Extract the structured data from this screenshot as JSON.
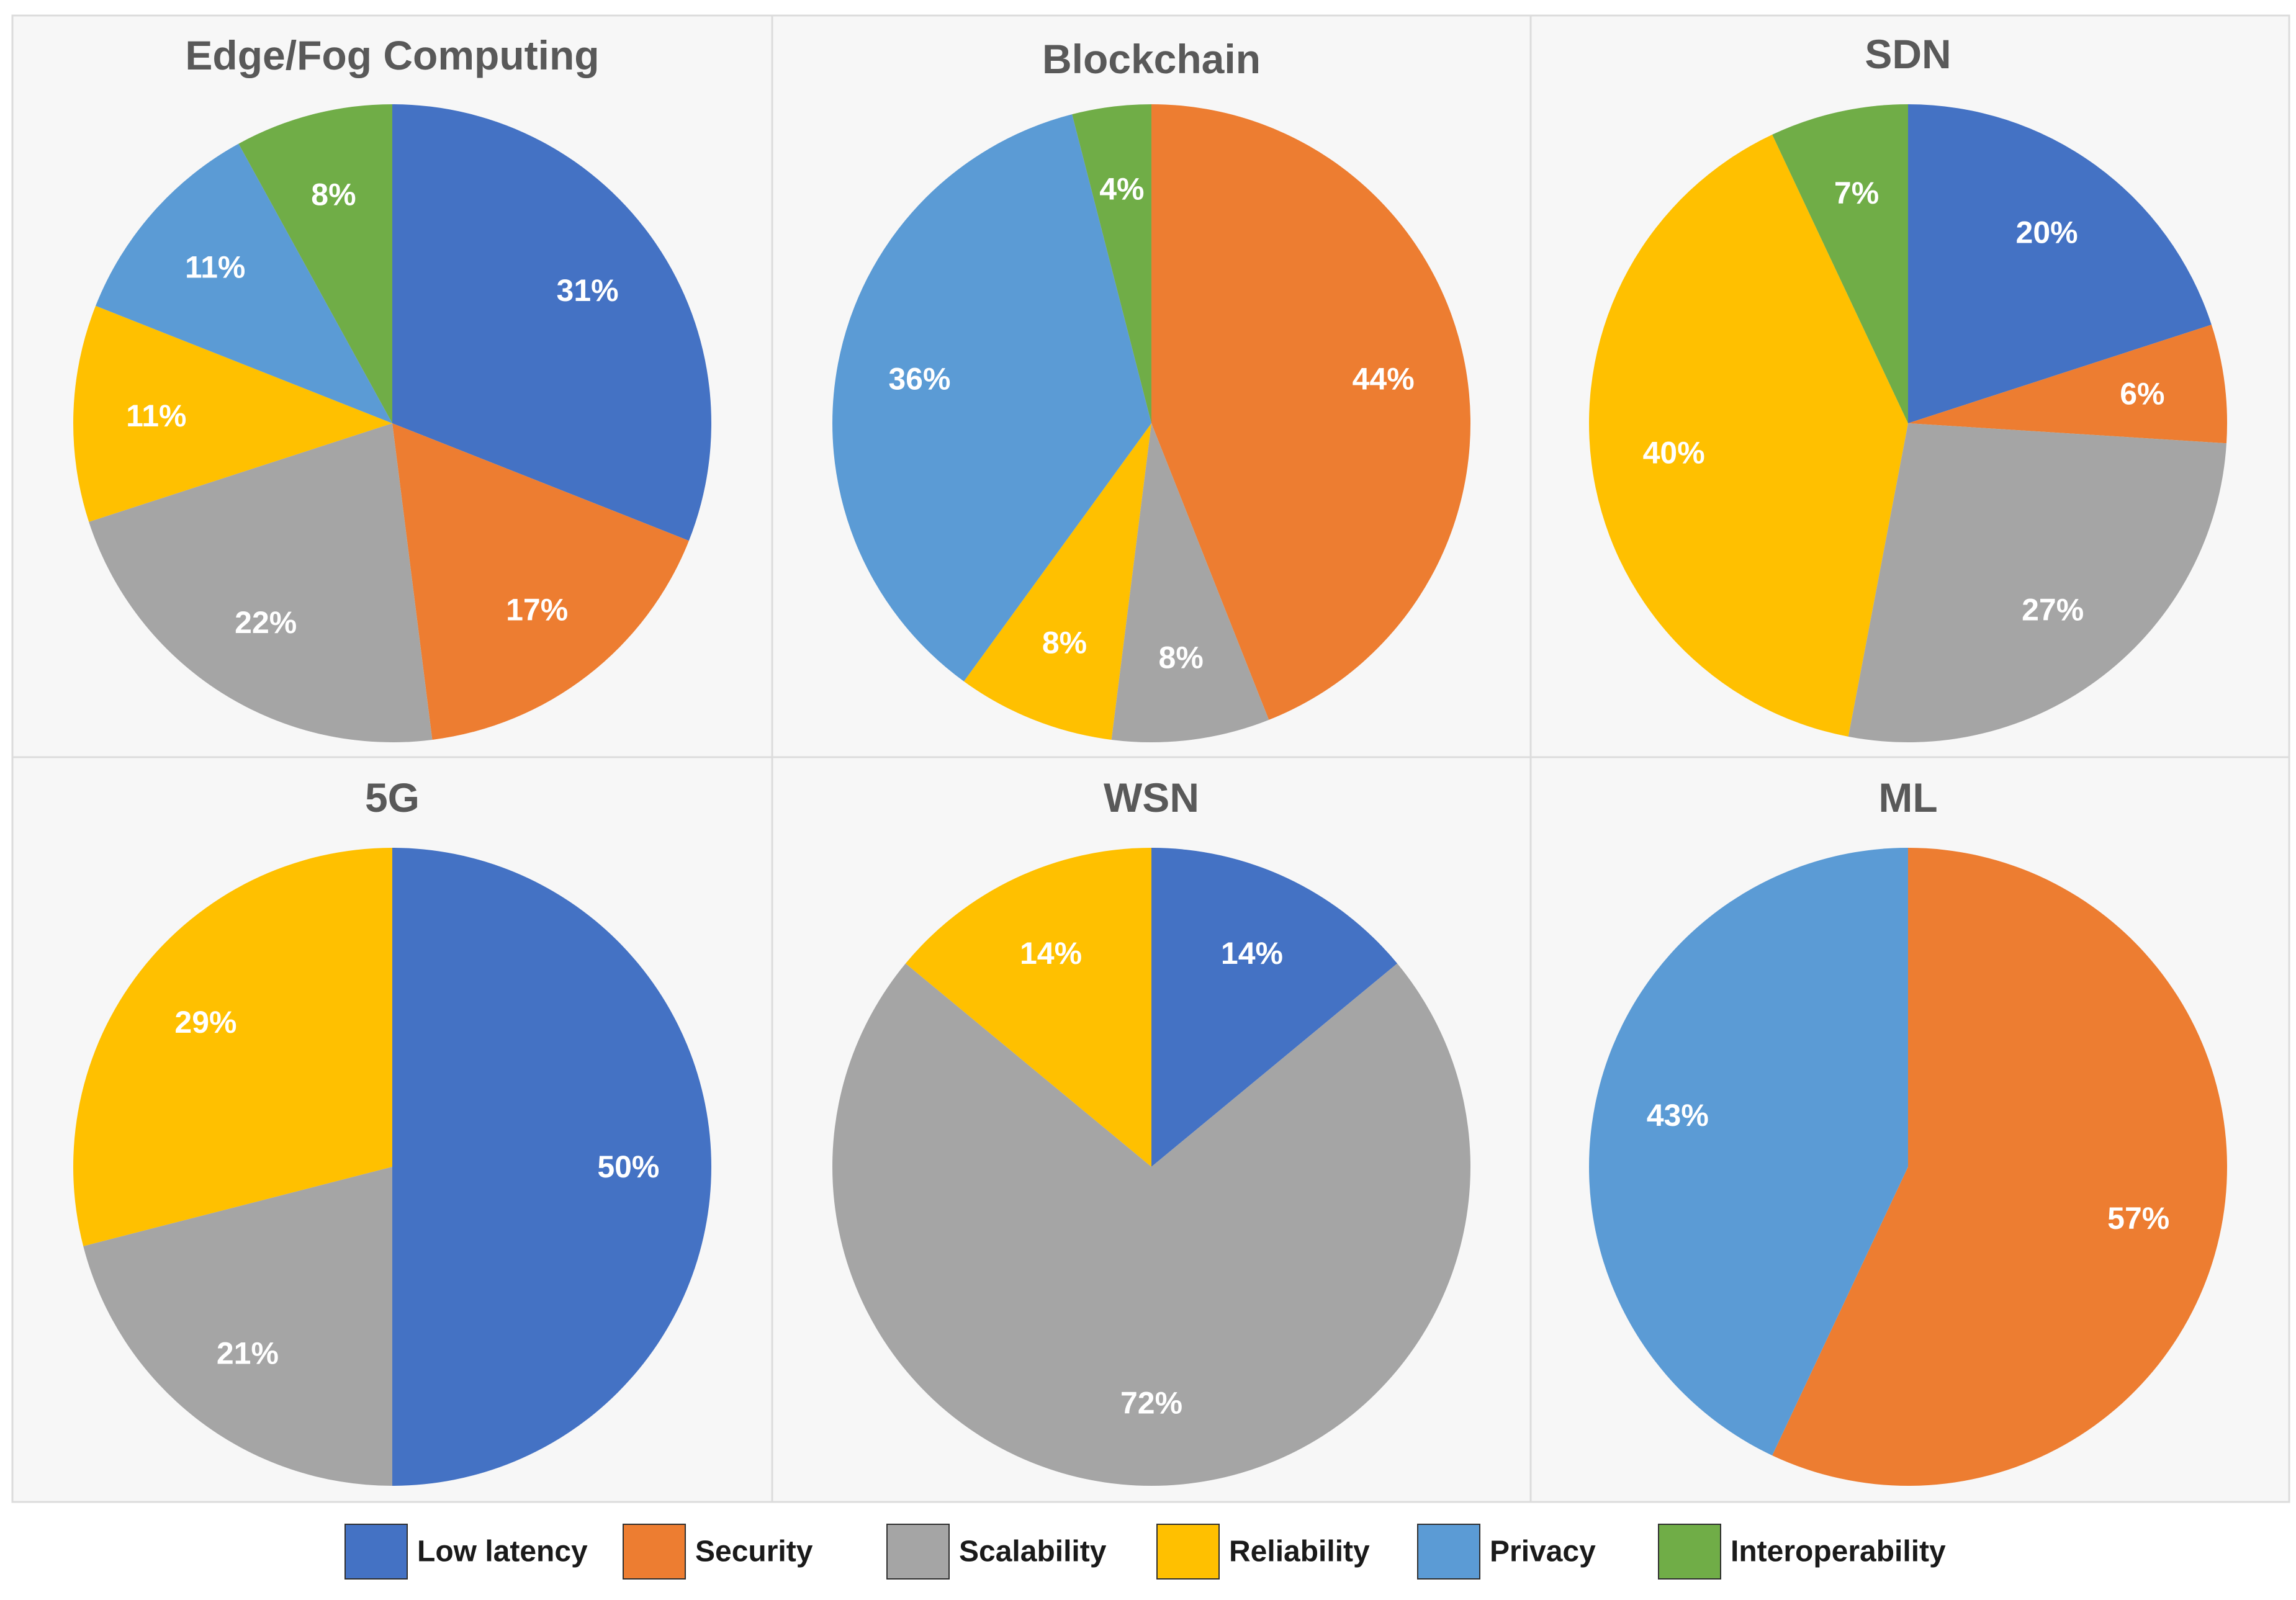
{
  "categories": [
    "Low latency",
    "Security",
    "Scalability",
    "Reliability",
    "Privacy",
    "Interoperability"
  ],
  "colors": {
    "Low latency": "#4472c4",
    "Security": "#ed7d31",
    "Scalability": "#a5a5a5",
    "Reliability": "#ffc000",
    "Privacy": "#5b9bd5",
    "Interoperability": "#70ad47"
  },
  "chart_data": [
    {
      "type": "pie",
      "title": "Edge/Fog Computing",
      "slices": [
        {
          "category": "Low latency",
          "value": 31,
          "label": "31%"
        },
        {
          "category": "Security",
          "value": 17,
          "label": "17%"
        },
        {
          "category": "Scalability",
          "value": 22,
          "label": "22%"
        },
        {
          "category": "Reliability",
          "value": 11,
          "label": "11%"
        },
        {
          "category": "Privacy",
          "value": 11,
          "label": "11%"
        },
        {
          "category": "Interoperability",
          "value": 8,
          "label": "8%"
        }
      ]
    },
    {
      "type": "pie",
      "title": "Blockchain",
      "slices": [
        {
          "category": "Security",
          "value": 44,
          "label": "44%"
        },
        {
          "category": "Scalability",
          "value": 8,
          "label": "8%"
        },
        {
          "category": "Reliability",
          "value": 8,
          "label": "8%"
        },
        {
          "category": "Privacy",
          "value": 36,
          "label": "36%"
        },
        {
          "category": "Interoperability",
          "value": 4,
          "label": "4%"
        }
      ]
    },
    {
      "type": "pie",
      "title": "SDN",
      "slices": [
        {
          "category": "Low latency",
          "value": 20,
          "label": "20%"
        },
        {
          "category": "Security",
          "value": 6,
          "label": "6%"
        },
        {
          "category": "Scalability",
          "value": 27,
          "label": "27%"
        },
        {
          "category": "Reliability",
          "value": 40,
          "label": "40%"
        },
        {
          "category": "Interoperability",
          "value": 7,
          "label": "7%"
        }
      ]
    },
    {
      "type": "pie",
      "title": "5G",
      "slices": [
        {
          "category": "Low latency",
          "value": 50,
          "label": "50%"
        },
        {
          "category": "Scalability",
          "value": 21,
          "label": "21%"
        },
        {
          "category": "Reliability",
          "value": 29,
          "label": "29%"
        }
      ]
    },
    {
      "type": "pie",
      "title": "WSN",
      "slices": [
        {
          "category": "Low latency",
          "value": 14,
          "label": "14%"
        },
        {
          "category": "Scalability",
          "value": 72,
          "label": "72%"
        },
        {
          "category": "Reliability",
          "value": 14,
          "label": "14%"
        }
      ]
    },
    {
      "type": "pie",
      "title": "ML",
      "slices": [
        {
          "category": "Security",
          "value": 57,
          "label": "57%"
        },
        {
          "category": "Privacy",
          "value": 43,
          "label": "43%"
        }
      ]
    }
  ],
  "legend": {
    "position": "bottom",
    "items": [
      "Low latency",
      "Security",
      "Scalability",
      "Reliability",
      "Privacy",
      "Interoperability"
    ]
  }
}
